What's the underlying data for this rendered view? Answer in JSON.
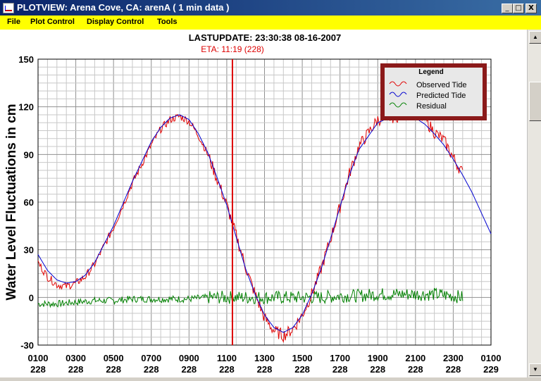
{
  "window": {
    "title": "PLOTVIEW:  Arena Cove, CA: arenA ( 1 min data )",
    "icon": "plot-app-icon",
    "controls": {
      "minimize": "_",
      "maximize": "□",
      "close": "X"
    }
  },
  "menu": {
    "items": [
      {
        "label": "File"
      },
      {
        "label": "Plot Control"
      },
      {
        "label": "Display Control"
      },
      {
        "label": "Tools"
      }
    ]
  },
  "header": {
    "last_update": "LASTUPDATE: 23:30:38  08-16-2007",
    "eta": "ETA: 11:19 (228)"
  },
  "colors": {
    "observed": "#e00000",
    "predicted": "#0000d0",
    "residual": "#008000",
    "cursor": "#dd0000",
    "menubar": "#ffff00",
    "legend_border": "#8b1a1a"
  },
  "chart_data": {
    "type": "line",
    "title": "",
    "xlabel": "",
    "ylabel": "Water Level Fluctuations in cm",
    "ylim": [
      -30,
      150
    ],
    "yticks": [
      "150",
      "120",
      "90",
      "60",
      "30",
      "0",
      "-30"
    ],
    "xticks": [
      {
        "time": "0100",
        "day": "228"
      },
      {
        "time": "0300",
        "day": "228"
      },
      {
        "time": "0500",
        "day": "228"
      },
      {
        "time": "0700",
        "day": "228"
      },
      {
        "time": "0900",
        "day": "228"
      },
      {
        "time": "1100",
        "day": "228"
      },
      {
        "time": "1300",
        "day": "228"
      },
      {
        "time": "1500",
        "day": "228"
      },
      {
        "time": "1700",
        "day": "228"
      },
      {
        "time": "1900",
        "day": "228"
      },
      {
        "time": "2100",
        "day": "228"
      },
      {
        "time": "2300",
        "day": "228"
      },
      {
        "time": "0100",
        "day": "229"
      }
    ],
    "xlim_hours": [
      1,
      25
    ],
    "eta_cursor_hour": 11.3,
    "grid": true,
    "legend": {
      "title": "Legend",
      "position": "top-right",
      "entries": [
        "Observed Tide",
        "Predicted Tide",
        "Residual"
      ]
    },
    "series": [
      {
        "name": "Predicted Tide",
        "x": [
          1,
          1.5,
          2,
          2.5,
          3,
          3.5,
          4,
          5,
          6,
          7,
          7.5,
          8,
          8.5,
          9,
          9.5,
          10,
          10.5,
          11,
          11.5,
          12,
          12.5,
          13,
          13.5,
          14,
          14.5,
          15,
          15.5,
          16,
          16.5,
          17,
          17.5,
          18,
          19,
          20,
          20.5,
          21,
          21.5,
          22,
          22.5,
          23,
          23.5,
          24,
          24.5,
          25
        ],
        "values": [
          27,
          17,
          11,
          9,
          10,
          14,
          22,
          45,
          73,
          98,
          107,
          113,
          115,
          112,
          103,
          91,
          75,
          58,
          38,
          18,
          2,
          -11,
          -19,
          -22,
          -19,
          -11,
          2,
          18,
          37,
          57,
          77,
          93,
          110,
          115,
          115,
          113,
          109,
          103,
          96,
          87,
          77,
          66,
          53,
          40
        ]
      },
      {
        "name": "Observed Tide",
        "x": [
          1,
          1.5,
          2,
          2.5,
          3,
          3.5,
          4,
          5,
          6,
          7,
          7.5,
          8,
          8.5,
          9,
          9.5,
          10,
          10.5,
          11,
          11.5,
          12,
          12.5,
          13,
          13.5,
          14,
          14.5,
          15,
          15.5,
          16,
          16.5,
          17,
          17.5,
          18,
          19,
          20,
          20.5,
          21,
          21.5,
          22,
          22.5,
          23,
          23.5
        ],
        "values": [
          22,
          13,
          8,
          7,
          9,
          13,
          21,
          44,
          72,
          96,
          106,
          112,
          114,
          111,
          102,
          90,
          74,
          58,
          39,
          19,
          2,
          -13,
          -21,
          -24,
          -20,
          -11,
          2,
          18,
          37,
          57,
          78,
          95,
          112,
          114,
          117,
          116,
          112,
          104,
          99,
          88,
          78
        ]
      },
      {
        "name": "Residual",
        "x": [
          1,
          2,
          3,
          4,
          5,
          6,
          7,
          8,
          9,
          10,
          11,
          12,
          13,
          14,
          15,
          16,
          17,
          18,
          19,
          20,
          21,
          22,
          23,
          23.5
        ],
        "values": [
          -4,
          -4,
          -3,
          -2,
          -2,
          -1,
          -1,
          -1,
          -1,
          0,
          0,
          0,
          0,
          0,
          0,
          0,
          1,
          1,
          2,
          2,
          2,
          2,
          1,
          0
        ]
      }
    ]
  }
}
